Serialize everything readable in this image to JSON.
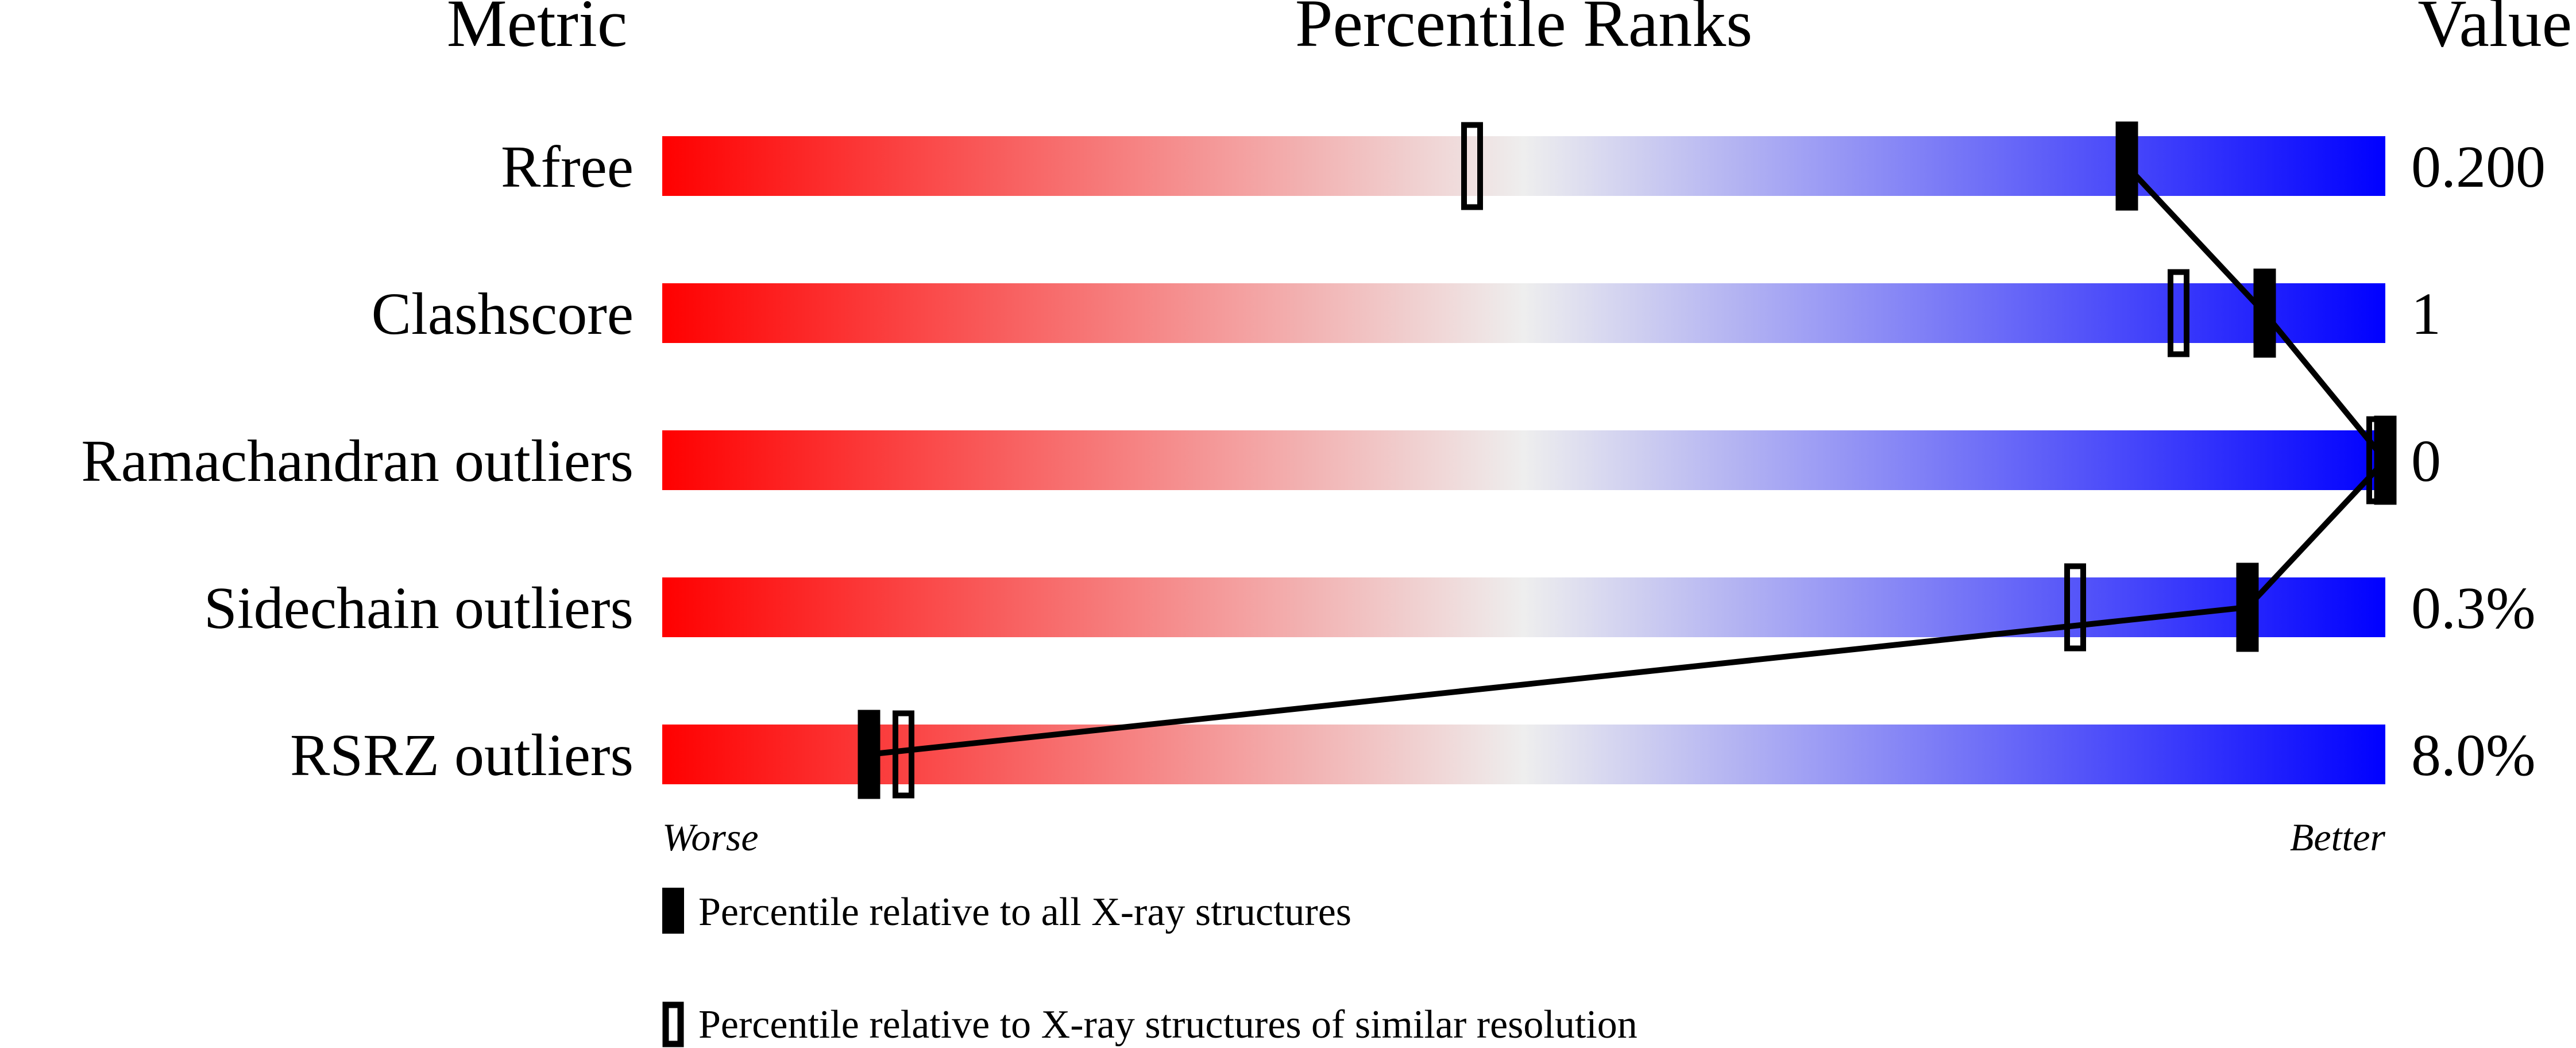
{
  "chart_data": {
    "type": "percentile-slider",
    "headers": {
      "metric": "Metric",
      "ranks": "Percentile Ranks",
      "value": "Value"
    },
    "xlim": [
      0,
      100
    ],
    "gradient_colors": {
      "worse": "#ff0000",
      "middle": "#eeeeee",
      "better": "#0000ff"
    },
    "metrics": [
      {
        "name": "Rfree",
        "value": "0.200",
        "percentile_all": 85,
        "percentile_similar": 47
      },
      {
        "name": "Clashscore",
        "value": "1",
        "percentile_all": 93,
        "percentile_similar": 88
      },
      {
        "name": "Ramachandran outliers",
        "value": "0",
        "percentile_all": 100,
        "percentile_similar": 100
      },
      {
        "name": "Sidechain outliers",
        "value": "0.3%",
        "percentile_all": 92,
        "percentile_similar": 82
      },
      {
        "name": "RSRZ outliers",
        "value": "8.0%",
        "percentile_all": 12,
        "percentile_similar": 14
      }
    ],
    "axis_labels": {
      "left": "Worse",
      "right": "Better"
    },
    "legend": [
      {
        "marker": "filled",
        "label": "Percentile relative to all X-ray structures"
      },
      {
        "marker": "open",
        "label": "Percentile relative to X-ray structures of similar resolution"
      }
    ]
  }
}
